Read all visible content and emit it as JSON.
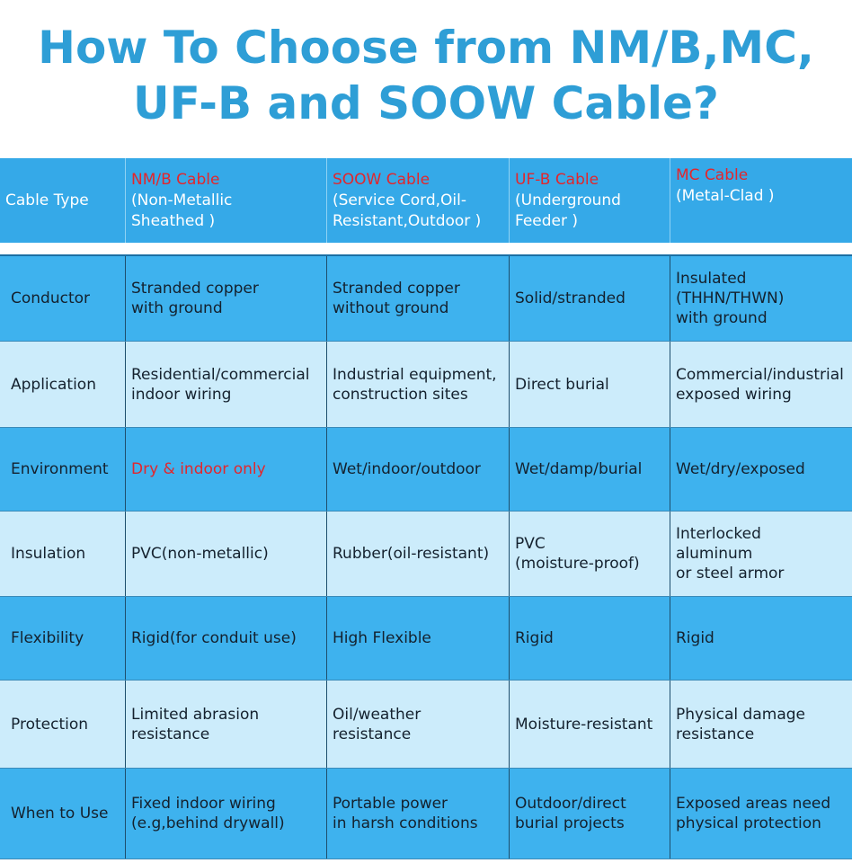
{
  "title": "How To Choose from NM/B,MC,\nUF-B and SOOW Cable?",
  "header": {
    "label": "Cable Type",
    "columns": [
      {
        "name": "NM/B Cable",
        "desc": "(Non-Metallic\nSheathed )"
      },
      {
        "name": "SOOW Cable",
        "desc": "(Service Cord,Oil-\nResistant,Outdoor )"
      },
      {
        "name": "UF-B Cable",
        "desc": "(Underground\nFeeder )"
      },
      {
        "name": "MC Cable",
        "desc": "(Metal-Clad )"
      }
    ]
  },
  "rows": [
    {
      "label": "Conductor",
      "cells": [
        "Stranded copper\nwith ground",
        "Stranded copper\nwithout ground",
        "Solid/stranded",
        "Insulated\n(THHN/THWN)\nwith ground"
      ]
    },
    {
      "label": "Application",
      "cells": [
        "Residential/commercial\nindoor wiring",
        "Industrial equipment,\nconstruction sites",
        "Direct burial",
        "Commercial/industrial\nexposed wiring"
      ]
    },
    {
      "label": "Environment",
      "cells": [
        "Dry & indoor only",
        "Wet/indoor/outdoor",
        "Wet/damp/burial",
        "Wet/dry/exposed"
      ]
    },
    {
      "label": "Insulation",
      "cells": [
        "PVC(non-metallic)",
        "Rubber(oil-resistant)",
        "PVC\n(moisture-proof)",
        "Interlocked\naluminum\nor steel armor"
      ]
    },
    {
      "label": "Flexibility",
      "cells": [
        "Rigid(for conduit use)",
        "High Flexible",
        "Rigid",
        "Rigid"
      ]
    },
    {
      "label": "Protection",
      "cells": [
        "Limited abrasion\nresistance",
        "Oil/weather\nresistance",
        "Moisture-resistant",
        "Physical damage\nresistance"
      ]
    },
    {
      "label": "When to Use",
      "cells": [
        "Fixed indoor wiring\n(e.g,behind drywall)",
        "Portable power\nin harsh conditions",
        "Outdoor/direct\nburial projects",
        "Exposed areas need\nphysical protection"
      ]
    }
  ],
  "colors": {
    "title": "#2e9ed6",
    "header_bg": "#35a9e8",
    "dark_row": "#3eb2ee",
    "light_row": "#ccecfb",
    "highlight": "#e3262c"
  }
}
